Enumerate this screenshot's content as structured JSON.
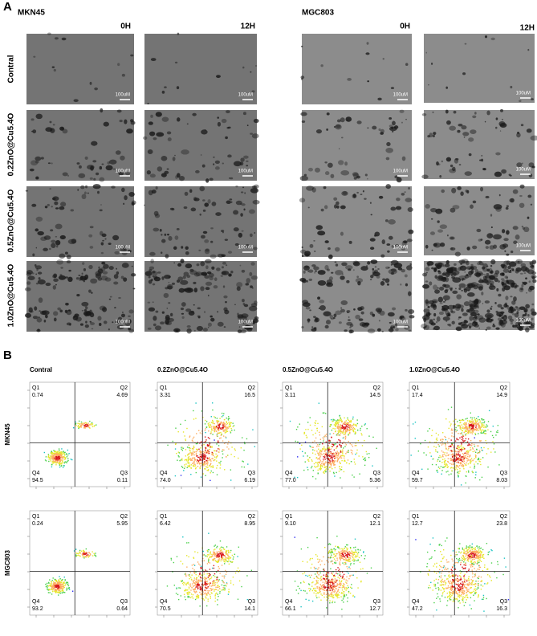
{
  "panel_a": {
    "label": "A",
    "cell_lines": [
      "MKN45",
      "MGC803"
    ],
    "times": [
      "0H",
      "12H"
    ],
    "treatments": [
      "Contral",
      "0.2ZnO@Cu5.4O",
      "0.5ZnO@Cu5.4O",
      "1.0ZnO@Cu5.4O"
    ],
    "scale_bar": "100uM"
  },
  "panel_b": {
    "label": "B",
    "columns": [
      "Contral",
      "0.2ZnO@Cu5.4O",
      "0.5ZnO@Cu5.4O",
      "1.0ZnO@Cu5.4O"
    ],
    "rows": [
      "MKN45",
      "MGC803"
    ],
    "quadrants": [
      "Q1",
      "Q2",
      "Q3",
      "Q4"
    ],
    "plots": [
      [
        {
          "q1": "0.74",
          "q2": "4.69",
          "q3": "0.11",
          "q4": "94.5"
        },
        {
          "q1": "3.31",
          "q2": "16.5",
          "q3": "6.19",
          "q4": "74.0"
        },
        {
          "q1": "3.11",
          "q2": "14.5",
          "q3": "5.36",
          "q4": "77.0"
        },
        {
          "q1": "17.4",
          "q2": "14.9",
          "q3": "8.03",
          "q4": "59.7"
        }
      ],
      [
        {
          "q1": "0.24",
          "q2": "5.95",
          "q3": "0.64",
          "q4": "93.2"
        },
        {
          "q1": "6.42",
          "q2": "8.95",
          "q3": "14.1",
          "q4": "70.5"
        },
        {
          "q1": "9.10",
          "q2": "12.1",
          "q3": "12.7",
          "q4": "66.1"
        },
        {
          "q1": "12.7",
          "q2": "23.8",
          "q3": "16.3",
          "q4": "47.2"
        }
      ]
    ]
  }
}
